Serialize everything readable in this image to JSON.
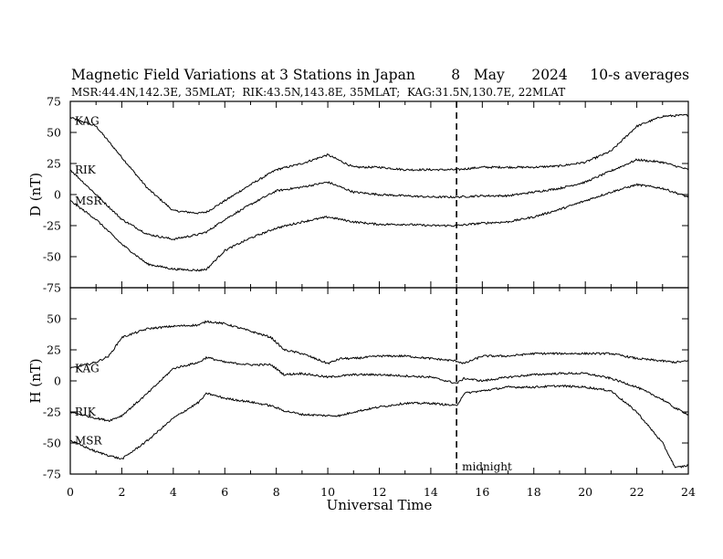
{
  "header": {
    "title_main": "Magnetic Field Variations at 3 Stations in Japan",
    "title_day": "8",
    "title_month": "May",
    "title_year": "2024",
    "title_avg": "10-s averages",
    "subtitle": "MSR:44.4N,142.3E, 35MLAT;  RIK:43.5N,143.8E, 35MLAT;  KAG:31.5N,130.7E, 22MLAT"
  },
  "chart_data": [
    {
      "type": "line",
      "panel": "top",
      "ylabel": "D (nT)",
      "ylim": [
        -75,
        75
      ],
      "yticks": [
        "75",
        "50",
        "25",
        "0",
        "-25",
        "-50",
        "-75"
      ],
      "xlim": [
        0,
        24
      ],
      "x": [
        0,
        1,
        2,
        3,
        4,
        5,
        5.3,
        6,
        7,
        8,
        9,
        10,
        10.5,
        11,
        12,
        13,
        14,
        15,
        16,
        17,
        18,
        19,
        20,
        21,
        22,
        23,
        24
      ],
      "series": [
        {
          "name": "KAG",
          "values": [
            62,
            55,
            30,
            5,
            -13,
            -15,
            -14,
            -5,
            8,
            20,
            25,
            32,
            27,
            22,
            22,
            20,
            20,
            20,
            22,
            22,
            22,
            23,
            26,
            35,
            55,
            63,
            64
          ]
        },
        {
          "name": "RIK",
          "values": [
            20,
            0,
            -20,
            -32,
            -36,
            -32,
            -30,
            -20,
            -8,
            3,
            6,
            10,
            6,
            2,
            0,
            -1,
            -2,
            -2,
            -1,
            -1,
            2,
            5,
            10,
            19,
            28,
            26,
            20
          ]
        },
        {
          "name": "MSR",
          "values": [
            -5,
            -20,
            -40,
            -56,
            -60,
            -61,
            -60,
            -45,
            -35,
            -27,
            -22,
            -18,
            -20,
            -22,
            -24,
            -24,
            -25,
            -25,
            -23,
            -22,
            -18,
            -12,
            -5,
            2,
            8,
            5,
            -2
          ]
        }
      ],
      "marker": {
        "x": 15
      }
    },
    {
      "type": "line",
      "panel": "bottom",
      "ylabel": "H (nT)",
      "xlabel": "Universal Time",
      "ylim": [
        -75,
        75
      ],
      "yticks": [
        "50",
        "25",
        "0",
        "-25",
        "-50",
        "-75"
      ],
      "xlim": [
        0,
        24
      ],
      "xticks": [
        "0",
        "2",
        "4",
        "6",
        "8",
        "10",
        "12",
        "14",
        "16",
        "18",
        "20",
        "22",
        "24"
      ],
      "x": [
        0,
        1,
        1.5,
        2,
        3,
        4,
        5,
        5.3,
        6,
        7,
        7.8,
        8.3,
        9,
        10,
        10.5,
        11,
        12,
        13,
        14,
        15,
        15.3,
        16,
        17,
        18,
        19,
        20,
        21,
        22,
        23,
        23.5,
        24
      ],
      "series": [
        {
          "name": "KAG",
          "values": [
            10,
            15,
            20,
            35,
            42,
            44,
            45,
            48,
            46,
            40,
            35,
            25,
            22,
            14,
            18,
            18,
            20,
            20,
            18,
            16,
            14,
            20,
            20,
            22,
            22,
            22,
            22,
            18,
            16,
            15,
            16
          ]
        },
        {
          "name": "RIK",
          "values": [
            -25,
            -30,
            -32,
            -28,
            -10,
            10,
            15,
            19,
            15,
            13,
            13,
            5,
            6,
            3,
            4,
            5,
            5,
            4,
            3,
            -2,
            2,
            0,
            3,
            5,
            6,
            6,
            2,
            -5,
            -15,
            -22,
            -27
          ]
        },
        {
          "name": "MSR",
          "values": [
            -48,
            -57,
            -60,
            -63,
            -48,
            -30,
            -17,
            -10,
            -14,
            -17,
            -20,
            -24,
            -27,
            -28,
            -28,
            -25,
            -21,
            -18,
            -18,
            -20,
            -10,
            -8,
            -5,
            -5,
            -4,
            -5,
            -8,
            -25,
            -50,
            -70,
            -68
          ]
        }
      ],
      "marker": {
        "x": 15,
        "label": "midnight"
      }
    }
  ]
}
